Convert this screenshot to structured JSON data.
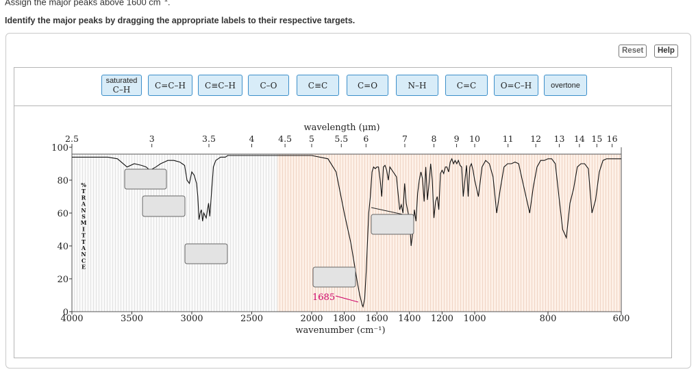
{
  "prompt": {
    "top_text": "Assign the major peaks above 1600 cm",
    "top_sup": "−1",
    "top_end": ".",
    "instructions": "Identify the major peaks by dragging the appropriate labels to their respective targets."
  },
  "controls": {
    "reset": "Reset",
    "help": "Help"
  },
  "labels": [
    {
      "line1": "saturated",
      "line2": "C–H"
    },
    {
      "text": "C=C–H"
    },
    {
      "text": "C≡C–H"
    },
    {
      "text": "C–O"
    },
    {
      "text": "C≡C"
    },
    {
      "text": "C=O"
    },
    {
      "text": "N–H"
    },
    {
      "text": "C=C"
    },
    {
      "text": "O=C–H"
    },
    {
      "text": "overtone"
    }
  ],
  "chart_data": {
    "type": "line",
    "title": "",
    "top_axis_label": "wavelength (μm)",
    "bottom_axis_label": "wavenumber (cm⁻¹)",
    "y_axis_label": "% TRANSMITTANCE",
    "y_axis_letters": [
      "%",
      "T",
      "R",
      "A",
      "N",
      "S",
      "M",
      "I",
      "T",
      "T",
      "A",
      "N",
      "C",
      "E"
    ],
    "ylim": [
      0,
      100
    ],
    "y_ticks": [
      0,
      20,
      40,
      60,
      80,
      100
    ],
    "x_ticks": [
      4000,
      3500,
      3000,
      2500,
      2000,
      1800,
      1600,
      1400,
      1200,
      1000,
      800,
      600
    ],
    "top_ticks": [
      "2.5",
      "3",
      "3.5",
      "4",
      "4.5",
      "5",
      "5.5",
      "6",
      "7",
      "8",
      "9",
      "10",
      "11",
      "12",
      "13",
      "14",
      "15",
      "16"
    ],
    "annotation": "1685",
    "annotation_color": "#cc0066",
    "drop_targets": 5,
    "series": [
      {
        "x": [
          4000,
          3800,
          3700,
          3620,
          3540,
          3480,
          3420,
          3380,
          3350,
          3300,
          3260,
          3230,
          3200,
          3150,
          3100,
          3080,
          3060,
          3040,
          3020,
          3000,
          2980,
          2960,
          2950,
          2940,
          2930,
          2920,
          2910,
          2900,
          2880,
          2860,
          2850,
          2820,
          2800,
          2760,
          2720,
          2700,
          2600,
          2400,
          2200,
          2000,
          1900,
          1850,
          1800,
          1760,
          1740,
          1720,
          1705,
          1695,
          1690,
          1685,
          1675,
          1665,
          1650,
          1640,
          1630,
          1620,
          1610,
          1600,
          1590,
          1580,
          1570,
          1560,
          1550,
          1540,
          1530,
          1520,
          1500,
          1480,
          1460,
          1450,
          1440,
          1430,
          1420,
          1400,
          1390,
          1380,
          1370,
          1360,
          1350,
          1340,
          1330,
          1320,
          1310,
          1300,
          1290,
          1280,
          1270,
          1260,
          1250,
          1240,
          1230,
          1220,
          1210,
          1200,
          1190,
          1180,
          1170,
          1160,
          1150,
          1140,
          1130,
          1120,
          1110,
          1100,
          1090,
          1080,
          1070,
          1060,
          1050,
          1040,
          1030,
          1020,
          1010,
          1000,
          990,
          980,
          970,
          960,
          950,
          940,
          930,
          920,
          910,
          900,
          890,
          880,
          870,
          860,
          850,
          840,
          830,
          820,
          810,
          800,
          790,
          780,
          770,
          760,
          750,
          740,
          730,
          720,
          710,
          700,
          690,
          680,
          670,
          660,
          650,
          640,
          620,
          600
        ],
        "y": [
          94,
          94,
          94,
          93,
          88,
          90,
          89,
          88,
          86,
          88,
          90,
          91,
          92,
          92,
          91,
          90,
          89,
          80,
          78,
          85,
          83,
          78,
          70,
          56,
          60,
          62,
          55,
          60,
          57,
          66,
          58,
          88,
          92,
          94,
          94,
          95,
          95,
          95,
          95,
          95,
          93,
          85,
          60,
          42,
          30,
          18,
          10,
          6,
          4,
          3,
          8,
          25,
          60,
          70,
          85,
          88,
          87,
          88,
          88,
          80,
          70,
          88,
          89,
          86,
          80,
          88,
          85,
          82,
          62,
          65,
          60,
          78,
          66,
          56,
          40,
          48,
          62,
          55,
          72,
          80,
          85,
          81,
          67,
          88,
          68,
          78,
          90,
          80,
          57,
          67,
          70,
          62,
          84,
          86,
          84,
          88,
          88,
          85,
          91,
          93,
          90,
          92,
          90,
          92,
          89,
          88,
          70,
          80,
          89,
          70,
          88,
          90,
          86,
          80,
          70,
          88,
          92,
          90,
          82,
          60,
          75,
          88,
          90,
          90,
          91,
          90,
          80,
          70,
          60,
          76,
          88,
          92,
          92,
          93,
          93,
          90,
          70,
          50,
          45,
          66,
          75,
          88,
          90,
          90,
          87,
          60,
          68,
          85,
          92,
          93,
          93,
          93
        ]
      }
    ]
  }
}
